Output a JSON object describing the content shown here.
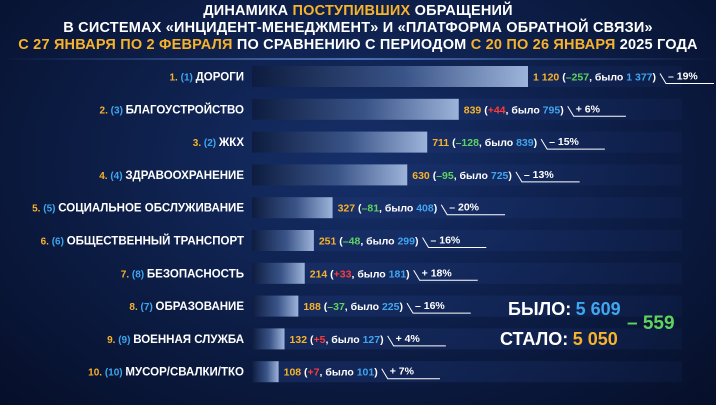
{
  "title": {
    "line1_a": "ДИНАМИКА ",
    "line1_b": "ПОСТУПИВШИХ",
    "line1_c": " ОБРАЩЕНИЙ",
    "line2": "В СИСТЕМАХ «ИНЦИДЕНТ-МЕНЕДЖМЕНТ» И «ПЛАТФОРМА ОБРАТНОЙ СВЯЗИ»",
    "line3_a": "С 27 ЯНВАРЯ ПО 2 ФЕВРАЛЯ",
    "line3_b": " ПО СРАВНЕНИЮ С ПЕРИОДОМ ",
    "line3_c": "С 20 ПО 26 ЯНВАРЯ",
    "line3_d": " 2025 ГОДА"
  },
  "chart_data": {
    "type": "bar",
    "orientation": "horizontal",
    "xlim": [
      0,
      1120
    ],
    "categories": [
      "ДОРОГИ",
      "БЛАГОУСТРОЙСТВО",
      "ЖКХ",
      "ЗДРАВООХРАНЕНИЕ",
      "СОЦИАЛЬНОЕ ОБСЛУЖИВАНИЕ",
      "ОБЩЕСТВЕННЫЙ ТРАНСПОРТ",
      "БЕЗОПАСНОСТЬ",
      "ОБРАЗОВАНИЕ",
      "ВОЕННАЯ СЛУЖБА",
      "МУСОР/СВАЛКИ/ТКО"
    ],
    "rank": [
      "1.",
      "2.",
      "3.",
      "4.",
      "5.",
      "6.",
      "7.",
      "8.",
      "9.",
      "10."
    ],
    "prev_rank": [
      "(1)",
      "(3)",
      "(2)",
      "(4)",
      "(5)",
      "(6)",
      "(8)",
      "(7)",
      "(9)",
      "(10)"
    ],
    "values": [
      1120,
      839,
      711,
      630,
      327,
      251,
      214,
      188,
      132,
      108
    ],
    "value_labels": [
      "1 120",
      "839",
      "711",
      "630",
      "327",
      "251",
      "214",
      "188",
      "132",
      "108"
    ],
    "change_labels": [
      "–257",
      "+44",
      "–128",
      "–95",
      "–81",
      "–48",
      "+33",
      "–37",
      "+5",
      "+7"
    ],
    "previous_values": [
      1377,
      795,
      839,
      725,
      408,
      299,
      181,
      225,
      127,
      101
    ],
    "previous_labels": [
      "1 377",
      "795",
      "839",
      "725",
      "408",
      "299",
      "181",
      "225",
      "127",
      "101"
    ],
    "was_word": "было",
    "percent_labels": [
      "– 19%",
      "+ 6%",
      "– 15%",
      "– 13%",
      "– 20%",
      "– 16%",
      "+ 18%",
      "– 16%",
      "+ 4%",
      "+ 7%"
    ]
  },
  "summary": {
    "was_label": "БЫЛО:",
    "was_value": "5 609",
    "now_label": "СТАЛО:",
    "now_value": "5 050",
    "diff": "– 559"
  },
  "colors": {
    "rank": "#f7b32b",
    "prev_rank": "#3fa6f0",
    "value": "#f7b32b",
    "increase": "#ff3b3b",
    "decrease": "#5fd35f",
    "previous": "#3fa6f0",
    "background": "#0c1c44"
  }
}
